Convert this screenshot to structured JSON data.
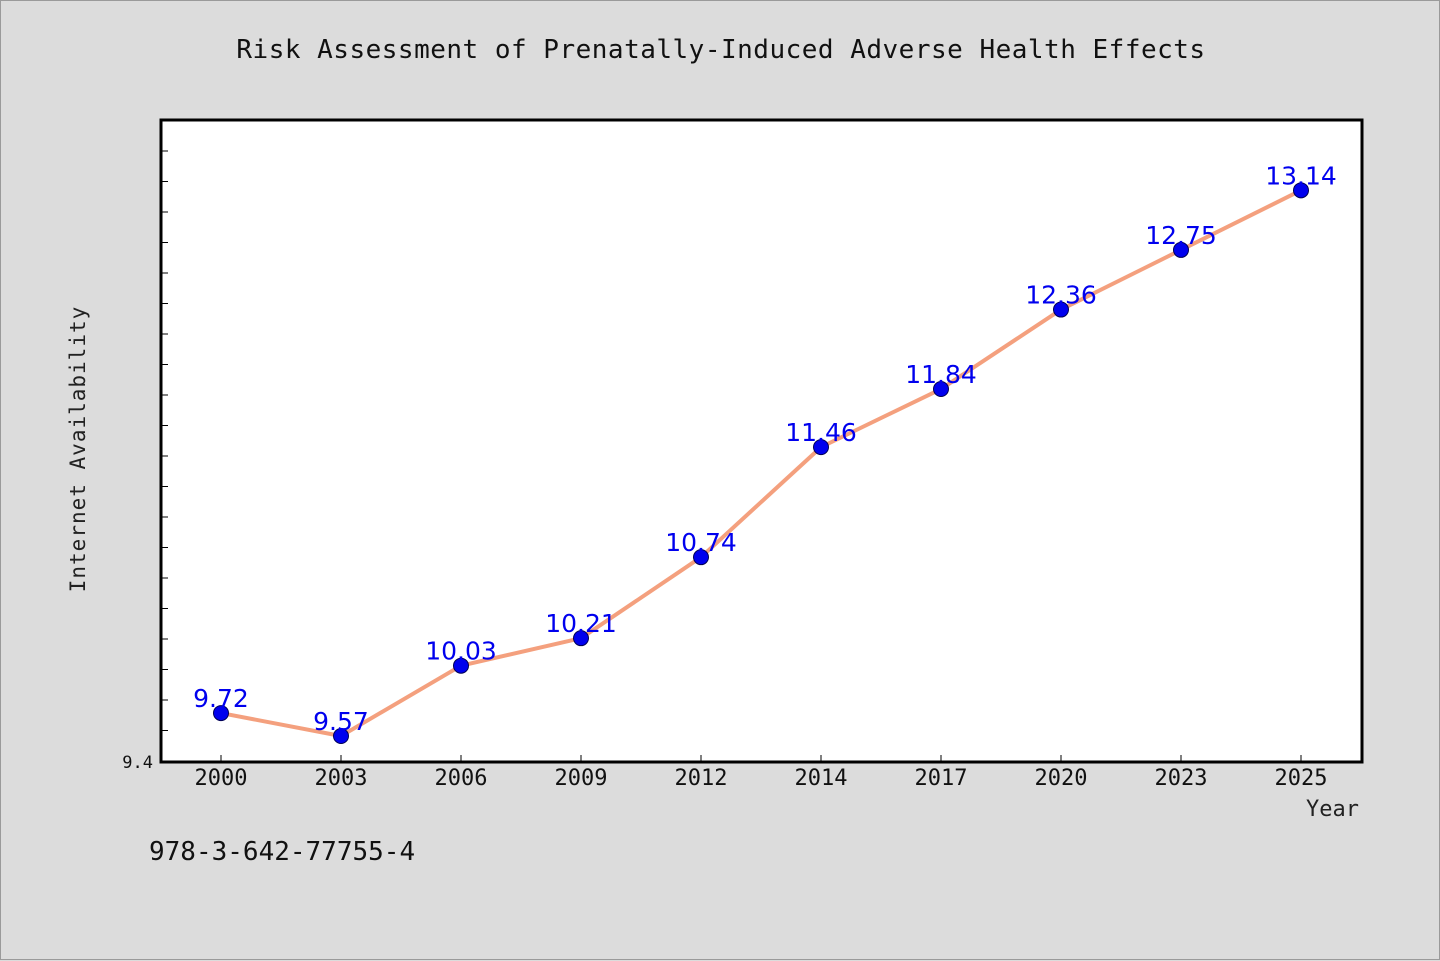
{
  "chart_data": {
    "type": "line",
    "title": "Risk Assessment of Prenatally-Induced Adverse Health Effects",
    "xlabel": "Year",
    "ylabel": "Internet Availability",
    "categories": [
      "2000",
      "2003",
      "2006",
      "2009",
      "2012",
      "2014",
      "2017",
      "2020",
      "2023",
      "2025"
    ],
    "series": [
      {
        "values": [
          9.72,
          9.57,
          10.03,
          10.21,
          10.74,
          11.46,
          11.84,
          12.36,
          12.75,
          13.14
        ],
        "data_labels": [
          "9.72",
          "9.57",
          "10.03",
          "10.21",
          "10.74",
          "11.46",
          "11.84",
          "12.36",
          "12.75",
          "13.14"
        ],
        "line_color": "#f4a07e",
        "marker_color": "#0000ee"
      }
    ],
    "y_tick_labels": [
      "9.4"
    ],
    "ylim": [
      9.4,
      13.6
    ],
    "grid": false,
    "legend": "none"
  },
  "footer": {
    "code": "978-3-642-77755-4"
  },
  "colors": {
    "background": "#dcdcdc",
    "plot_background": "#ffffff",
    "line": "#f4a07e",
    "marker": "#0000ee",
    "data_label": "#0000ee"
  }
}
